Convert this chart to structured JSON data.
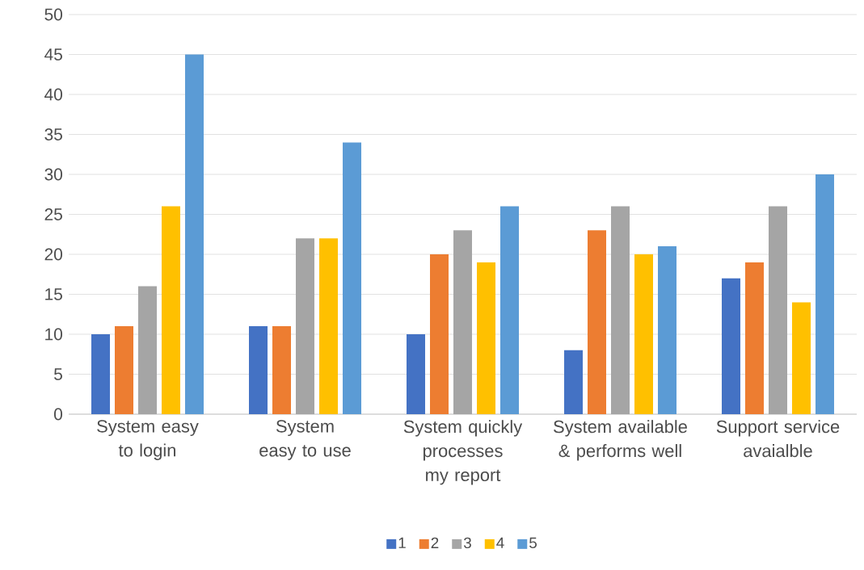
{
  "chart_data": {
    "type": "bar",
    "categories": [
      "System easy to login",
      "System easy to use",
      "System quickly processes my report",
      "System available & performs well",
      "Support service avaialble"
    ],
    "series": [
      {
        "name": "1",
        "color": "#4472c4",
        "values": [
          10,
          11,
          10,
          8,
          17
        ]
      },
      {
        "name": "2",
        "color": "#ed7d31",
        "values": [
          11,
          11,
          20,
          23,
          19
        ]
      },
      {
        "name": "3",
        "color": "#a5a5a5",
        "values": [
          16,
          22,
          23,
          26,
          26
        ]
      },
      {
        "name": "4",
        "color": "#ffc000",
        "values": [
          26,
          22,
          19,
          20,
          14
        ]
      },
      {
        "name": "5",
        "color": "#5b9bd5",
        "values": [
          45,
          34,
          26,
          21,
          30
        ]
      }
    ],
    "ylim": [
      0,
      50
    ],
    "yticks": [
      0,
      5,
      10,
      15,
      20,
      25,
      30,
      35,
      40,
      45,
      50
    ],
    "grid": "y",
    "legend": "bottom"
  }
}
